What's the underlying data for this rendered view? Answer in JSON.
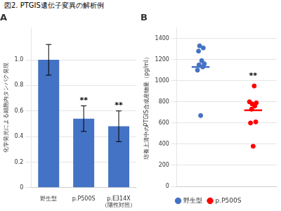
{
  "title": "図2. PTGIS遺伝子変異の解析例",
  "chart_data": [
    {
      "type": "bar",
      "title": "A",
      "categories": [
        "野生型",
        "p.P500S",
        "p.E314X\n（陽性対照）"
      ],
      "values": [
        1.0,
        0.54,
        0.48
      ],
      "errors": [
        0.12,
        0.1,
        0.12
      ],
      "color": "#4472C4",
      "ylabel": "化学発光による細胞内タンパク発現",
      "ylim": [
        0,
        1.25
      ],
      "yticks": [
        0,
        0.2,
        0.4,
        0.6,
        0.8,
        {
          "value": 1.0,
          "label": "1.0"
        }
      ],
      "grid": true,
      "annotations": [
        {
          "text": "**",
          "x": "p.P500S"
        },
        {
          "text": "**",
          "x": "p.E314X\n（陽性対照）"
        }
      ]
    },
    {
      "type": "scatter",
      "title": "B",
      "ylabel": "培養上清中のPTGIS合成産物量（pg/ml）",
      "xlim": [
        -0.45,
        1.45
      ],
      "ylim": [
        0,
        1500
      ],
      "yticks": [
        0,
        200,
        400,
        600,
        800,
        1000,
        1200,
        1400
      ],
      "grid": true,
      "tick_labels": "y",
      "legend": "bottom",
      "series": [
        {
          "name": "野生型",
          "color": "#4472C4",
          "x": [
            0.0,
            -0.06,
            0.04,
            -0.03,
            0.07,
            0.02,
            -0.04,
            0.05,
            -0.02
          ],
          "values": [
            670,
            1100,
            1130,
            1150,
            1160,
            1190,
            1280,
            1310,
            1330
          ],
          "mean": 1130
        },
        {
          "name": "p.P500S",
          "color": "#FF0000",
          "x": [
            1.0,
            0.95,
            1.05,
            0.97,
            1.03,
            0.98,
            1.06,
            0.93,
            1.02
          ],
          "values": [
            380,
            600,
            610,
            730,
            760,
            780,
            790,
            800,
            950
          ],
          "mean": 720
        }
      ],
      "annotations": [
        {
          "text": "**",
          "x": 1.0,
          "y": 1010
        }
      ]
    }
  ]
}
